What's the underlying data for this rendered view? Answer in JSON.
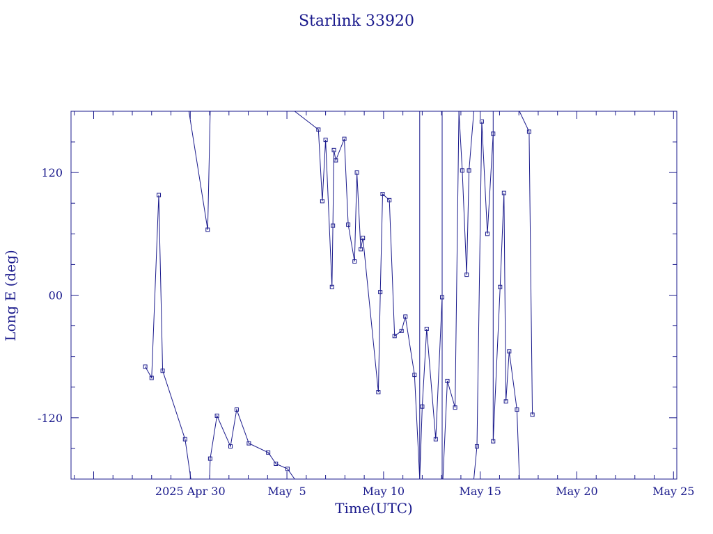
{
  "chart_data": {
    "type": "line",
    "title": "Starlink 33920",
    "xlabel": "Time(UTC)",
    "ylabel": "Long E (deg)",
    "xlim_days_from_apr26": [
      -2.17,
      29.17
    ],
    "ylim": [
      -180,
      180
    ],
    "x_ticks": [
      "2025 Apr 30",
      "May  5",
      "May 10",
      "May 15",
      "May 20",
      "May 25"
    ],
    "y_ticks": [
      "-120",
      "00",
      "120"
    ],
    "y_tick_values": [
      -120,
      0,
      120
    ],
    "grid": false,
    "colors": {
      "ink": "#1a1a8c"
    },
    "segments": [
      [
        [
          1.67,
          -70
        ],
        [
          2.0,
          -81
        ],
        [
          2.37,
          98
        ],
        [
          2.57,
          -74
        ],
        [
          3.73,
          -141
        ],
        [
          4.03,
          -180
        ]
      ],
      [
        [
          4.05,
          180
        ],
        [
          3.93,
          180
        ],
        [
          4.9,
          64
        ],
        [
          5.03,
          180
        ]
      ],
      [
        [
          5.0,
          -180
        ],
        [
          5.03,
          -160
        ],
        [
          5.38,
          -118
        ],
        [
          6.08,
          -148
        ],
        [
          6.4,
          -112
        ],
        [
          7.03,
          -145
        ],
        [
          8.03,
          -154
        ],
        [
          8.43,
          -165
        ],
        [
          9.03,
          -170
        ],
        [
          9.4,
          -180
        ]
      ],
      [
        [
          9.4,
          180
        ],
        [
          10.63,
          162
        ],
        [
          10.83,
          92
        ],
        [
          11.0,
          152
        ],
        [
          11.33,
          8
        ],
        [
          11.38,
          68
        ],
        [
          11.43,
          142
        ],
        [
          11.53,
          132
        ],
        [
          11.97,
          153
        ],
        [
          12.17,
          69
        ],
        [
          12.5,
          33
        ],
        [
          12.62,
          120
        ],
        [
          12.82,
          45
        ],
        [
          12.93,
          56
        ],
        [
          13.73,
          -95
        ],
        [
          13.83,
          3
        ],
        [
          13.95,
          99
        ],
        [
          14.3,
          93
        ],
        [
          14.57,
          -40
        ],
        [
          14.93,
          -35
        ],
        [
          15.13,
          -21
        ],
        [
          15.6,
          -78
        ],
        [
          15.87,
          -180
        ]
      ],
      [
        [
          15.87,
          180
        ],
        [
          15.87,
          -180
        ],
        [
          16.0,
          -109
        ],
        [
          16.23,
          -33
        ],
        [
          16.7,
          -141
        ],
        [
          17.03,
          -2
        ],
        [
          17.03,
          180
        ]
      ],
      [
        [
          17.03,
          -180
        ],
        [
          17.03,
          180
        ]
      ],
      [
        [
          17.07,
          -180
        ],
        [
          17.3,
          -84
        ],
        [
          17.7,
          -110
        ],
        [
          17.9,
          180
        ]
      ],
      [
        [
          17.9,
          180
        ],
        [
          18.07,
          122
        ],
        [
          18.3,
          20
        ],
        [
          18.42,
          122
        ],
        [
          18.67,
          180
        ]
      ],
      [
        [
          18.67,
          -180
        ],
        [
          18.83,
          -148
        ],
        [
          19.08,
          170
        ],
        [
          19.37,
          60
        ],
        [
          19.67,
          158
        ]
      ],
      [
        [
          19.67,
          180
        ],
        [
          19.67,
          -143
        ],
        [
          20.03,
          8
        ],
        [
          20.23,
          100
        ],
        [
          20.33,
          -104
        ],
        [
          20.5,
          -55
        ],
        [
          20.9,
          -112
        ],
        [
          21.03,
          -180
        ]
      ],
      [
        [
          21.03,
          180
        ],
        [
          21.53,
          160
        ],
        [
          21.7,
          -117
        ]
      ]
    ]
  }
}
